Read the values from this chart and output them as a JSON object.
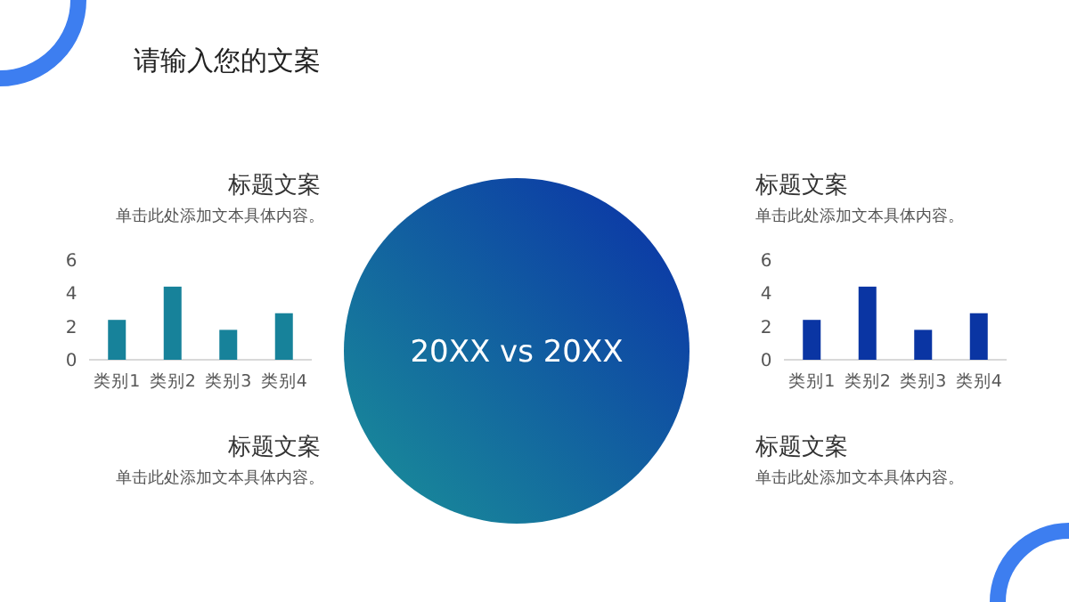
{
  "chart_data": [
    {
      "type": "bar",
      "title": "标题文案",
      "subtitle": "单击此处添加文本具体内容。",
      "categories": [
        "类别1",
        "类别2",
        "类别3",
        "类别4"
      ],
      "series": [
        {
          "color": "#17829a",
          "values": [
            2.4,
            4.4,
            1.8,
            2.8
          ]
        }
      ],
      "ylim": [
        0,
        6
      ],
      "yticks": [
        0,
        2,
        4,
        6
      ],
      "grid": false
    },
    {
      "type": "bar",
      "title": "标题文案",
      "subtitle": "单击此处添加文本具体内容。",
      "categories": [
        "类别1",
        "类别2",
        "类别3",
        "类别4"
      ],
      "series": [
        {
          "color": "#0a35a3",
          "values": [
            2.4,
            4.4,
            1.8,
            2.8
          ]
        }
      ],
      "ylim": [
        0,
        6
      ],
      "yticks": [
        0,
        2,
        4,
        6
      ],
      "grid": false
    },
    {
      "type": "other",
      "title": "请输入您的文案",
      "annotations": [
        "20XX vs 20XX",
        "标题文案",
        "单击此处添加文本具体内容。",
        "标题文案",
        "单击此处添加文本具体内容。"
      ]
    }
  ]
}
